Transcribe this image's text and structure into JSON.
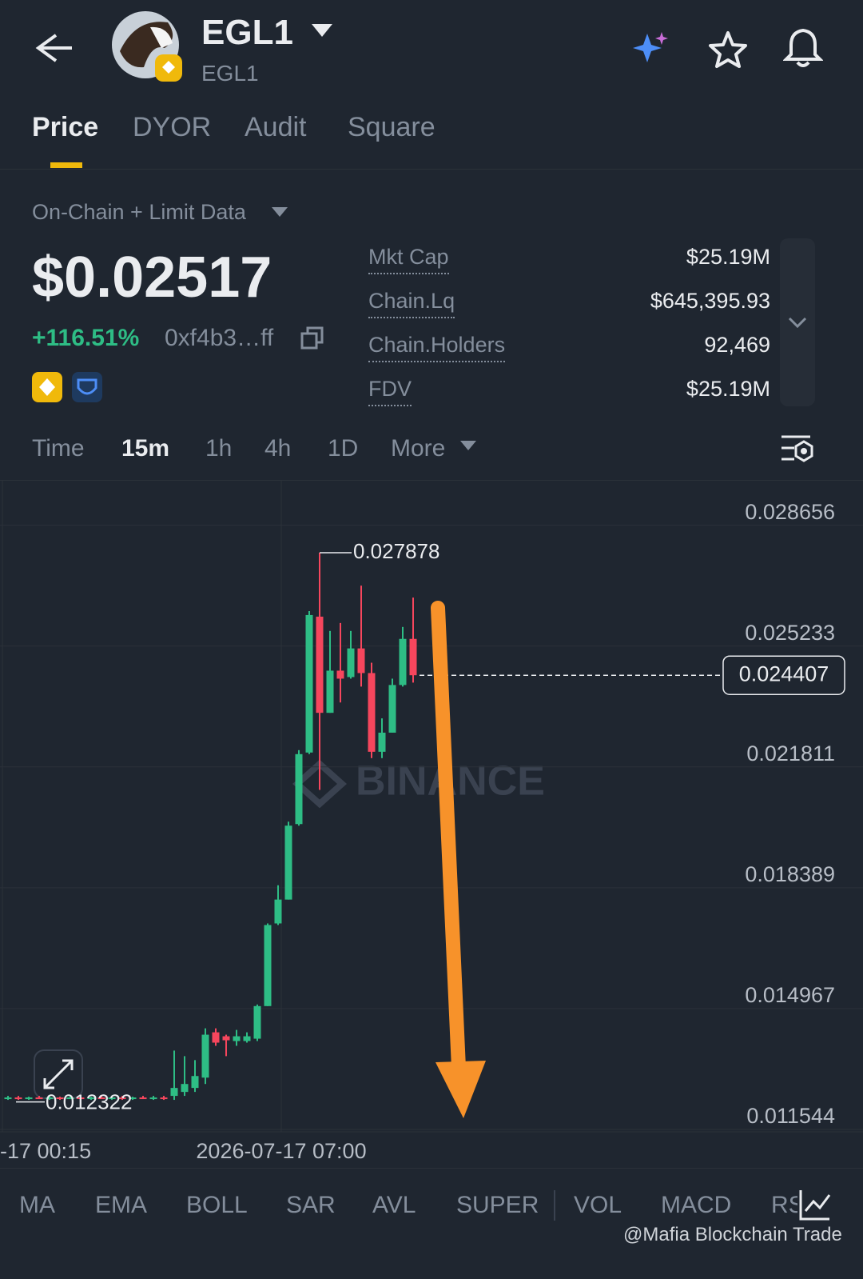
{
  "header": {
    "symbol": "EGL1",
    "subtitle": "EGL1"
  },
  "tabs": [
    "Price",
    "DYOR",
    "Audit",
    "Square"
  ],
  "data_source": "On-Chain + Limit Data",
  "price": "$0.02517",
  "change": "+116.51%",
  "address": "0xf4b3…ff",
  "stats": [
    {
      "label": "Mkt Cap",
      "value": "$25.19M"
    },
    {
      "label": "Chain.Lq",
      "value": "$645,395.93"
    },
    {
      "label": "Chain.Holders",
      "value": "92,469"
    },
    {
      "label": "FDV",
      "value": "$25.19M"
    }
  ],
  "timeframes": [
    "Time",
    "15m",
    "1h",
    "4h",
    "1D",
    "More"
  ],
  "chart": {
    "type": "candlestick",
    "up_color": "#2ebd85",
    "down_color": "#f6465d",
    "ylim": [
      0.011476,
      0.029939
    ],
    "yticks": [
      0.028656,
      0.025233,
      0.021811,
      0.018389,
      0.014967,
      0.011544
    ],
    "x_labels": [
      "-17 00:15",
      "2026-07-17 07:00"
    ],
    "high_label": 0.027878,
    "low_label": 0.012322,
    "last_price": 0.024407,
    "watermark": "BINANCE",
    "candles": [
      {
        "o": 0.012426,
        "h": 0.012494,
        "l": 0.012381,
        "c": 0.012449
      },
      {
        "o": 0.012449,
        "h": 0.012494,
        "l": 0.012381,
        "c": 0.012426
      },
      {
        "o": 0.012426,
        "h": 0.012471,
        "l": 0.012381,
        "c": 0.012449
      },
      {
        "o": 0.012449,
        "h": 0.012494,
        "l": 0.012404,
        "c": 0.012426
      },
      {
        "o": 0.012426,
        "h": 0.012494,
        "l": 0.012381,
        "c": 0.012449
      },
      {
        "o": 0.012449,
        "h": 0.012471,
        "l": 0.012381,
        "c": 0.012426
      },
      {
        "o": 0.012426,
        "h": 0.012494,
        "l": 0.012404,
        "c": 0.012449
      },
      {
        "o": 0.012449,
        "h": 0.012494,
        "l": 0.012381,
        "c": 0.012426
      },
      {
        "o": 0.012426,
        "h": 0.012471,
        "l": 0.012381,
        "c": 0.012449
      },
      {
        "o": 0.012449,
        "h": 0.012494,
        "l": 0.012404,
        "c": 0.012426
      },
      {
        "o": 0.012426,
        "h": 0.012494,
        "l": 0.012381,
        "c": 0.012449
      },
      {
        "o": 0.012449,
        "h": 0.012494,
        "l": 0.012381,
        "c": 0.012426
      },
      {
        "o": 0.012426,
        "h": 0.012471,
        "l": 0.012381,
        "c": 0.012449
      },
      {
        "o": 0.012449,
        "h": 0.012494,
        "l": 0.012404,
        "c": 0.012426
      },
      {
        "o": 0.012426,
        "h": 0.012494,
        "l": 0.012381,
        "c": 0.012449
      },
      {
        "o": 0.012449,
        "h": 0.012494,
        "l": 0.012381,
        "c": 0.012404
      },
      {
        "o": 0.012494,
        "h": 0.013777,
        "l": 0.012381,
        "c": 0.012719
      },
      {
        "o": 0.012606,
        "h": 0.013619,
        "l": 0.012494,
        "c": 0.012831
      },
      {
        "o": 0.012719,
        "h": 0.013507,
        "l": 0.012606,
        "c": 0.013056
      },
      {
        "o": 0.013011,
        "h": 0.014407,
        "l": 0.012831,
        "c": 0.014227
      },
      {
        "o": 0.014294,
        "h": 0.014407,
        "l": 0.013912,
        "c": 0.014002
      },
      {
        "o": 0.014182,
        "h": 0.014227,
        "l": 0.013619,
        "c": 0.014069
      },
      {
        "o": 0.014047,
        "h": 0.014362,
        "l": 0.013912,
        "c": 0.014182
      },
      {
        "o": 0.014047,
        "h": 0.014294,
        "l": 0.014002,
        "c": 0.014182
      },
      {
        "o": 0.014114,
        "h": 0.015082,
        "l": 0.014047,
        "c": 0.015037
      },
      {
        "o": 0.015037,
        "h": 0.017378,
        "l": 0.015037,
        "c": 0.017333
      },
      {
        "o": 0.017378,
        "h": 0.018459,
        "l": 0.017333,
        "c": 0.018054
      },
      {
        "o": 0.018054,
        "h": 0.02026,
        "l": 0.018054,
        "c": 0.020147
      },
      {
        "o": 0.020192,
        "h": 0.022286,
        "l": 0.020147,
        "c": 0.022173
      },
      {
        "o": 0.022218,
        "h": 0.026225,
        "l": 0.022173,
        "c": 0.026112
      },
      {
        "o": 0.026067,
        "h": 0.027878,
        "l": 0.02116,
        "c": 0.023343
      },
      {
        "o": 0.023343,
        "h": 0.025662,
        "l": 0.023343,
        "c": 0.024537
      },
      {
        "o": 0.024537,
        "h": 0.025887,
        "l": 0.023636,
        "c": 0.024311
      },
      {
        "o": 0.024356,
        "h": 0.025662,
        "l": 0.024311,
        "c": 0.025167
      },
      {
        "o": 0.025167,
        "h": 0.026945,
        "l": 0.024086,
        "c": 0.024469
      },
      {
        "o": 0.024469,
        "h": 0.024762,
        "l": 0.02206,
        "c": 0.02224
      },
      {
        "o": 0.02224,
        "h": 0.023186,
        "l": 0.02206,
        "c": 0.022781
      },
      {
        "o": 0.022781,
        "h": 0.024311,
        "l": 0.022781,
        "c": 0.024131
      },
      {
        "o": 0.024131,
        "h": 0.025775,
        "l": 0.024086,
        "c": 0.025437
      },
      {
        "o": 0.025437,
        "h": 0.026607,
        "l": 0.024199,
        "c": 0.024407
      }
    ]
  },
  "indicators": [
    "MA",
    "EMA",
    "BOLL",
    "SAR",
    "AVL",
    "SUPER",
    "VOL",
    "MACD",
    "RS"
  ],
  "credit": "@Mafia Blockchain Trade"
}
